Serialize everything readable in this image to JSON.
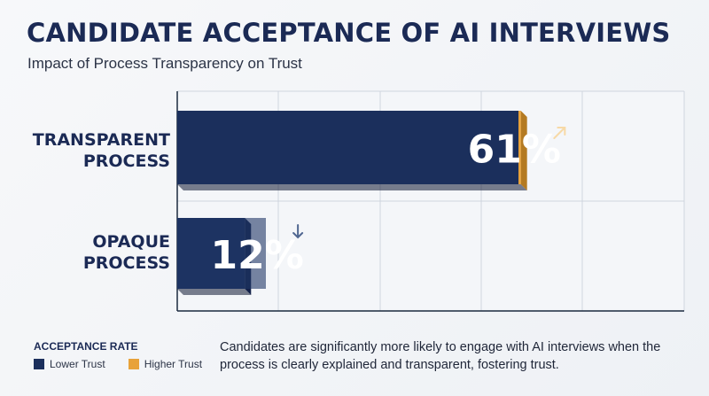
{
  "title": "CANDIDATE ACCEPTANCE OF AI INTERVIEWS",
  "subtitle": "Impact of Process Transparency on Trust",
  "legend": {
    "title": "ACCEPTANCE RATE",
    "items": [
      {
        "label": "Lower Trust",
        "color": "#1b2f5c"
      },
      {
        "label": "Higher Trust",
        "color": "#e8a23a"
      }
    ]
  },
  "note": "Candidates are significantly more likely to engage with AI interviews when the process is clearly explained and transparent, fostering trust.",
  "chart_data": {
    "type": "bar",
    "orientation": "horizontal",
    "categories": [
      "TRANSPARENT PROCESS",
      "OPAQUE PROCESS"
    ],
    "category_lines": [
      [
        "TRANSPARENT",
        "PROCESS"
      ],
      [
        "OPAQUE",
        "PROCESS"
      ]
    ],
    "values": [
      61,
      12
    ],
    "labels": [
      "61%",
      "12%"
    ],
    "trend_icons": [
      "arrow-up-right-icon",
      "arrow-down-icon"
    ],
    "colors": {
      "lower": "#1b2f5c",
      "higher": "#e8a23a",
      "grid": "#cfd5de",
      "axis": "#1b2a3f"
    },
    "grid": true,
    "legend_position": "bottom-left"
  }
}
